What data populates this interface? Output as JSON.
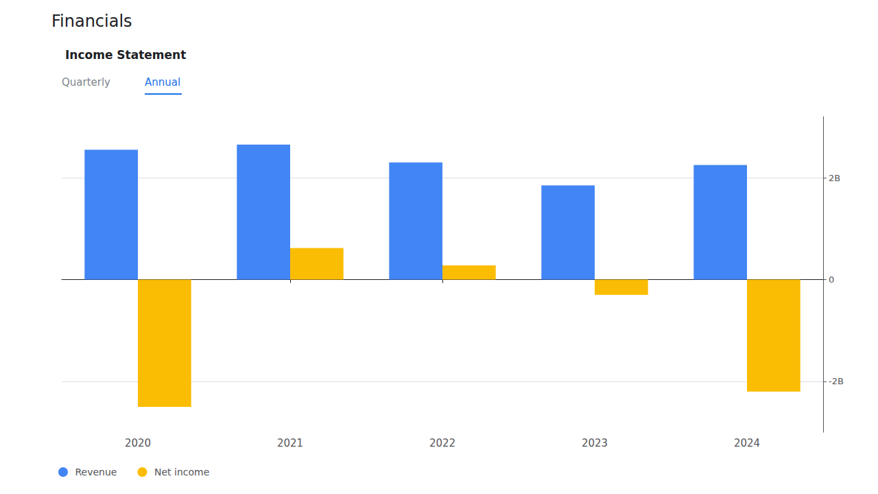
{
  "chart_data": {
    "type": "bar",
    "title": "Financials",
    "subtitle": "Income Statement",
    "annotations": [
      "Quarterly",
      "Annual"
    ],
    "categories": [
      "2020",
      "2021",
      "2022",
      "2023",
      "2024"
    ],
    "series": [
      {
        "name": "Revenue",
        "color": "#4285F4",
        "values": [
          2.55,
          2.65,
          2.3,
          1.85,
          2.25
        ]
      },
      {
        "name": "Net income",
        "color": "#FBBC04",
        "values": [
          -2.5,
          0.62,
          0.28,
          -0.3,
          -2.2
        ]
      }
    ],
    "ylim": [
      -3.0,
      3.2
    ],
    "yticks": [
      {
        "value": -2,
        "label": "-2B"
      },
      0,
      {
        "value": 2,
        "label": "2B"
      }
    ],
    "grid": true,
    "legend": "lower left"
  }
}
